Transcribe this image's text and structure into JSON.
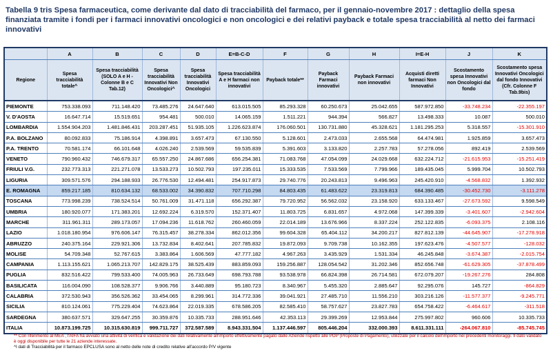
{
  "header": {
    "title": "Tabella 9 tris  Spesa farmaceutica, come derivante dal dato di tracciabilità del farmaco, per il  gennaio-novembre 2017 : dettaglio della spesa finanziata tramite i fondi per i farmaci innovativi oncologici e non oncologici e dei relativi payback e totale spesa tracciabilità al netto dei farmaci innovativi"
  },
  "table": {
    "letters": [
      "A",
      "B",
      "C",
      "D",
      "E=B-C-D",
      "F",
      "G",
      "H",
      "I=E-H",
      "J",
      "K"
    ],
    "columns": [
      "Regione",
      "Spesa tracciabilità totale^",
      "Spesa tracciabilità (SOLO A e H - Colonne B e C Tab.12)",
      "Spesa tracciabilità Innovativi Non Oncologici^",
      "Spesa tracciabilità Innovativi Oncologici",
      "Spesa tracciabilità A e H farmaci non innovativi",
      "Payback totale**",
      "Payback Farmaci innovativi",
      "Payback Farmaci non innovativi",
      "Acquisti diretti farmaci Non Innovativi",
      "Scostamento spesa Innovativi non Oncologici dal fondo",
      "Scostamento spesa Innovativi Oncologici dal fondo Innovativi (Cfr. Colonne F Tab.9bis)"
    ],
    "rows": [
      [
        "PIEMONTE",
        "753.338.093",
        "711.148.420",
        "73.485.276",
        "24.647.640",
        "613.015.505",
        "85.293.328",
        "60.250.673",
        "25.042.655",
        "587.972.850",
        "-33.748.234",
        "-22.355.197"
      ],
      [
        "V. D'AOSTA",
        "16.647.714",
        "15.519.651",
        "954.481",
        "500.010",
        "14.065.159",
        "1.511.221",
        "944.394",
        "566.827",
        "13.498.333",
        "10.087",
        "500.010"
      ],
      [
        "LOMBARDIA",
        "1.554.904.203",
        "1.481.846.431",
        "203.287.451",
        "51.935.105",
        "1.226.623.874",
        "176.060.501",
        "130.731.880",
        "45.328.621",
        "1.181.295.253",
        "5.318.557",
        "-15.301.910"
      ],
      [
        "P.A. BOLZANO",
        "80.092.833",
        "75.186.914",
        "4.398.891",
        "3.657.473",
        "67.130.550",
        "5.128.601",
        "2.473.033",
        "2.655.568",
        "64.474.981",
        "1.925.859",
        "3.657.473"
      ],
      [
        "P.A. TRENTO",
        "70.581.174",
        "66.101.648",
        "4.026.240",
        "2.539.569",
        "59.535.839",
        "5.391.603",
        "3.133.820",
        "2.257.783",
        "57.278.056",
        "892.419",
        "2.539.569"
      ],
      [
        "VENETO",
        "790.960.432",
        "746.679.317",
        "65.557.250",
        "24.867.686",
        "656.254.381",
        "71.083.768",
        "47.054.099",
        "24.029.668",
        "632.224.712",
        "-21.615.953",
        "-15.251.419"
      ],
      [
        "FRIULI V.G.",
        "232.773.313",
        "221.271.078",
        "13.533.273",
        "10.502.793",
        "197.235.011",
        "15.333.535",
        "7.533.569",
        "7.799.966",
        "189.435.045",
        "5.999.704",
        "10.502.793"
      ],
      [
        "LIGURIA",
        "309.571.576",
        "294.188.933",
        "26.776.530",
        "12.494.481",
        "254.917.873",
        "29.740.776",
        "20.243.813",
        "9.496.963",
        "245.420.910",
        "-4.568.832",
        "1.392.932"
      ],
      [
        "E. ROMAGNA",
        "859.217.185",
        "810.634.132",
        "68.533.002",
        "34.390.832",
        "707.710.298",
        "84.803.435",
        "61.483.622",
        "23.319.813",
        "684.390.485",
        "-30.452.730",
        "-3.111.278"
      ],
      [
        "TOSCANA",
        "773.998.239",
        "738.524.514",
        "50.761.009",
        "31.471.118",
        "656.292.387",
        "79.720.952",
        "56.562.032",
        "23.158.920",
        "633.133.467",
        "-27.673.592",
        "9.598.549"
      ],
      [
        "UMBRIA",
        "180.920.077",
        "171.383.201",
        "12.692.224",
        "6.319.570",
        "152.371.407",
        "11.803.725",
        "6.831.657",
        "4.972.068",
        "147.399.339",
        "-3.401.607",
        "-2.942.604"
      ],
      [
        "MARCHE",
        "311.961.311",
        "289.173.057",
        "17.094.236",
        "11.618.762",
        "260.460.059",
        "22.014.189",
        "13.676.966",
        "8.337.224",
        "252.122.835",
        "-6.093.375",
        "2.108.116"
      ],
      [
        "LAZIO",
        "1.018.180.954",
        "976.606.147",
        "76.315.457",
        "38.278.334",
        "862.012.356",
        "99.604.328",
        "65.404.112",
        "34.200.217",
        "827.812.139",
        "-44.645.907",
        "-17.278.918"
      ],
      [
        "ABRUZZO",
        "240.375.164",
        "229.921.306",
        "13.732.834",
        "8.402.641",
        "207.785.832",
        "19.872.093",
        "9.709.738",
        "10.162.355",
        "197.623.476",
        "-4.507.577",
        "-128.032"
      ],
      [
        "MOLISE",
        "54.709.348",
        "52.767.615",
        "3.383.864",
        "1.606.569",
        "47.777.182",
        "4.967.263",
        "3.435.929",
        "1.531.334",
        "46.245.848",
        "-3.674.387",
        "-2.015.754"
      ],
      [
        "CAMPANIA",
        "1.113.155.621",
        "1.065.213.707",
        "142.829.175",
        "38.525.439",
        "883.859.093",
        "159.256.887",
        "128.054.542",
        "31.202.346",
        "852.656.748",
        "-61.629.305",
        "-37.878.499"
      ],
      [
        "PUGLIA",
        "832.516.422",
        "799.533.400",
        "74.005.963",
        "26.733.649",
        "698.793.788",
        "93.538.978",
        "66.824.398",
        "26.714.581",
        "672.079.207",
        "-19.267.276",
        "284.808"
      ],
      [
        "BASILICATA",
        "116.004.090",
        "108.528.377",
        "9.906.766",
        "3.440.889",
        "95.180.723",
        "8.340.967",
        "5.455.320",
        "2.885.647",
        "92.295.076",
        "145.727",
        "-864.829"
      ],
      [
        "CALABRIA",
        "372.530.943",
        "356.526.362",
        "33.454.065",
        "8.299.961",
        "314.772.336",
        "39.041.921",
        "27.485.710",
        "11.556.210",
        "303.216.126",
        "-11.577.377",
        "-9.245.771"
      ],
      [
        "SICILIA",
        "810.124.061",
        "775.229.404",
        "74.623.864",
        "22.019.335",
        "678.586.205",
        "82.585.410",
        "58.757.627",
        "23.827.783",
        "654.758.422",
        "-6.464.617",
        "-311.518"
      ],
      [
        "SARDEGNA",
        "380.637.571",
        "329.647.255",
        "30.359.876",
        "10.335.733",
        "288.951.646",
        "42.353.113",
        "29.399.269",
        "12.953.844",
        "275.997.802",
        "960.606",
        "10.335.733"
      ],
      [
        "ITALIA",
        "10.873.199.725",
        "10.315.630.819",
        "999.711.727",
        "372.587.589",
        "8.943.331.504",
        "1.137.446.597",
        "805.446.204",
        "332.000.393",
        "8.611.331.111",
        "-264.067.810",
        "-85.745.745"
      ]
    ]
  },
  "footnotes": [
    "** Con riferimento al MEA , l'AIFA ha avviato una attività di verifica e validazione dei dati relativamente all'importo effettivamente pagato dalle Aziende rispetto alle PDP (Proposte di Pagamento), utilizzate per il calcolo dell'importo nei precedenti monitoraggi. Il dato validato è oggi disponibile per tutte le 21 aziende interessate.",
    "^I dati di Tracciabilità per il farmaco EPCLUSA sono al netto delle note di credito relative all'accordo P/V vigente"
  ]
}
